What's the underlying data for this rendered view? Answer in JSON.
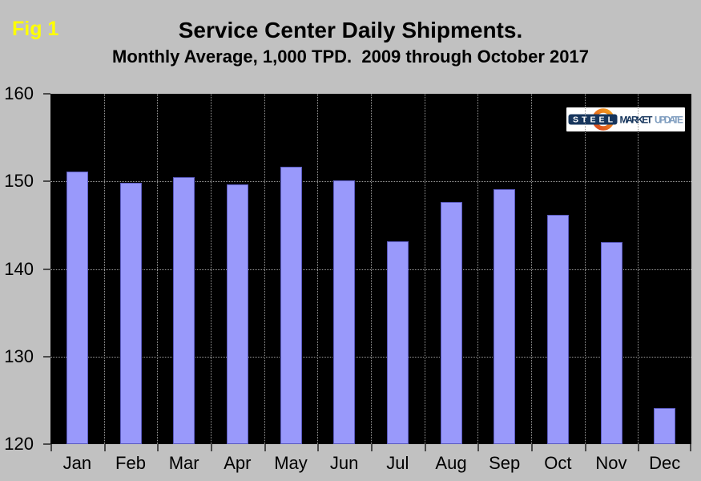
{
  "fig_label": "Fig 1",
  "title": "Service Center Daily Shipments.",
  "subtitle": "Monthly Average, 1,000 TPD.  2009 through October 2017",
  "logo": {
    "name": "steel-market-update-logo",
    "steel": "STEEL",
    "market": "MARKET",
    "update": "UPDATE"
  },
  "colors": {
    "page_bg": "#c1c1c1",
    "plot_bg": "#000000",
    "bar_fill": "#9999fb",
    "bar_border": "#5b5bc0",
    "gridline": "#9a9a9a",
    "fig_label": "#ffff00",
    "logo_navy": "#17365d",
    "logo_steel_blue": "#7f9dbf",
    "logo_orange_dark": "#d9471f",
    "logo_orange_light": "#f6a21e"
  },
  "chart_data": {
    "type": "bar",
    "title": "Service Center Daily Shipments.",
    "subtitle": "Monthly Average, 1,000 TPD.  2009 through October 2017",
    "xlabel": "",
    "ylabel": "",
    "categories": [
      "Jan",
      "Feb",
      "Mar",
      "Apr",
      "May",
      "Jun",
      "Jul",
      "Aug",
      "Sep",
      "Oct",
      "Nov",
      "Dec"
    ],
    "values": [
      151.1,
      149.8,
      150.5,
      149.7,
      151.7,
      150.1,
      143.2,
      147.6,
      149.1,
      146.2,
      143.1,
      124.1
    ],
    "ylim": [
      120,
      160
    ],
    "yticks": [
      120,
      130,
      140,
      150,
      160
    ],
    "horizontal_gridlines": [
      130,
      140,
      150
    ],
    "vertical_gridlines": "category-boundaries",
    "grid_style": "dotted",
    "legend": "none"
  }
}
